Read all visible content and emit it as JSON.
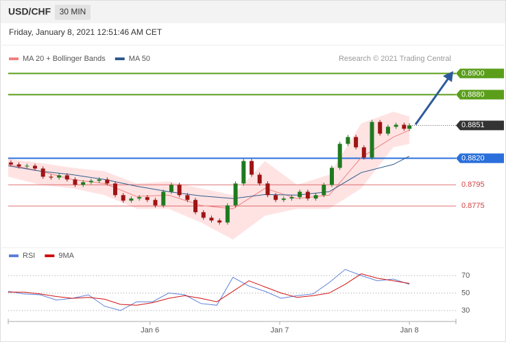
{
  "header": {
    "symbol": "USD/CHF",
    "timeframe": "30 MIN",
    "timestamp": "Friday, January 8, 2021 12:51:46 AM CET"
  },
  "chart_data": [
    {
      "type": "candlestick",
      "annotation": "Research © 2021 Trading Central",
      "xlim": [
        0,
        167.4
      ],
      "ylim": [
        0.8737,
        0.8908
      ],
      "up_color": "#1f7a1f",
      "down_color": "#9e1414",
      "candles": {
        "x": [
          1,
          4,
          7,
          10,
          13,
          16,
          19,
          22,
          25,
          28,
          31,
          34,
          37,
          40,
          43,
          46,
          49,
          52,
          55,
          58,
          61,
          64,
          67,
          70,
          73,
          76,
          79,
          82,
          85,
          88,
          91,
          94,
          97,
          100,
          103,
          106,
          109,
          112,
          115,
          118,
          121,
          124,
          127,
          130,
          133,
          136,
          139,
          142,
          145,
          148,
          150
        ],
        "open": [
          0.8816,
          0.88142,
          0.88123,
          0.88129,
          0.88103,
          0.88026,
          0.88018,
          0.88039,
          0.88,
          0.87949,
          0.87974,
          0.87987,
          0.88,
          0.87962,
          0.87852,
          0.878,
          0.8782,
          0.87833,
          0.87807,
          0.87755,
          0.87884,
          0.87949,
          0.87852,
          0.87807,
          0.87691,
          0.87639,
          0.87613,
          0.87594,
          0.87755,
          0.87962,
          0.88174,
          0.88045,
          0.87962,
          0.87852,
          0.87807,
          0.8782,
          0.87833,
          0.87884,
          0.8782,
          0.87852,
          0.87949,
          0.8811,
          0.88336,
          0.884,
          0.88303,
          0.88207,
          0.88542,
          0.88432,
          0.88497,
          0.88516,
          0.88478
        ],
        "high": [
          0.8818,
          0.88162,
          0.88149,
          0.88149,
          0.88123,
          0.88046,
          0.88059,
          0.88059,
          0.8802,
          0.87994,
          0.88007,
          0.8802,
          0.8802,
          0.87982,
          0.87872,
          0.8784,
          0.87853,
          0.87853,
          0.87827,
          0.87904,
          0.87969,
          0.87969,
          0.87872,
          0.87827,
          0.87711,
          0.87659,
          0.87633,
          0.87775,
          0.87982,
          0.88194,
          0.88194,
          0.88065,
          0.87982,
          0.87872,
          0.8784,
          0.87853,
          0.87904,
          0.87904,
          0.87872,
          0.87969,
          0.8813,
          0.88356,
          0.8842,
          0.8842,
          0.88323,
          0.88562,
          0.88562,
          0.88517,
          0.88536,
          0.88536,
          0.8853
        ],
        "low": [
          0.88122,
          0.88103,
          0.88103,
          0.88083,
          0.88006,
          0.87998,
          0.87998,
          0.8798,
          0.87929,
          0.87929,
          0.87954,
          0.87967,
          0.87942,
          0.87832,
          0.8778,
          0.8778,
          0.878,
          0.87787,
          0.87735,
          0.87735,
          0.87864,
          0.87832,
          0.87787,
          0.87671,
          0.87619,
          0.87593,
          0.87574,
          0.87574,
          0.87735,
          0.87942,
          0.88025,
          0.87942,
          0.87832,
          0.87787,
          0.87787,
          0.878,
          0.87813,
          0.878,
          0.878,
          0.87832,
          0.87929,
          0.8809,
          0.88316,
          0.88283,
          0.88187,
          0.88187,
          0.88412,
          0.88412,
          0.88477,
          0.88458,
          0.88458
        ],
        "close": [
          0.88142,
          0.88123,
          0.88129,
          0.88103,
          0.88026,
          0.88018,
          0.88039,
          0.88,
          0.87949,
          0.87974,
          0.87987,
          0.88,
          0.87962,
          0.87852,
          0.878,
          0.8782,
          0.87833,
          0.87807,
          0.87755,
          0.87884,
          0.87949,
          0.87852,
          0.87807,
          0.87691,
          0.87639,
          0.87613,
          0.87594,
          0.87755,
          0.87962,
          0.88174,
          0.88045,
          0.87962,
          0.87852,
          0.87807,
          0.8782,
          0.87833,
          0.87884,
          0.8782,
          0.87852,
          0.87949,
          0.8811,
          0.88336,
          0.884,
          0.88303,
          0.88207,
          0.88542,
          0.88432,
          0.88497,
          0.88516,
          0.88478,
          0.8851
        ]
      },
      "ma_x": [
        0,
        12,
        24,
        36,
        48,
        60,
        72,
        84,
        96,
        108,
        120,
        132,
        144,
        150
      ],
      "series": [
        {
          "name": "MA 20 + Bollinger Bands",
          "color": "#f08080",
          "band_color": "#ffdcdc",
          "values": [
            0.88142,
            0.88078,
            0.88,
            0.87962,
            0.87839,
            0.87852,
            0.87755,
            0.87723,
            0.87916,
            0.8782,
            0.87852,
            0.88207,
            0.884,
            0.88465
          ],
          "upper": [
            0.88194,
            0.88155,
            0.8811,
            0.88078,
            0.87962,
            0.87981,
            0.87916,
            0.87852,
            0.88174,
            0.87949,
            0.88045,
            0.88529,
            0.88639,
            0.88594
          ],
          "lower": [
            0.88026,
            0.87949,
            0.87916,
            0.87852,
            0.87723,
            0.87723,
            0.87594,
            0.87433,
            0.87658,
            0.87723,
            0.87723,
            0.87916,
            0.88303,
            0.88336
          ]
        },
        {
          "name": "MA 50",
          "color": "#2e5a8c",
          "values": [
            0.88129,
            0.88078,
            0.88045,
            0.88,
            0.87936,
            0.87884,
            0.87845,
            0.8782,
            0.87858,
            0.87852,
            0.87884,
            0.88065,
            0.88142,
            0.8822
          ]
        }
      ],
      "levels": [
        {
          "value": 0.89,
          "label": "0.8900",
          "color": "#5a9e1a",
          "box": true
        },
        {
          "value": 0.888,
          "label": "0.8880",
          "color": "#5a9e1a",
          "box": true
        },
        {
          "value": 0.8851,
          "label": "0.8851",
          "color": "#333333",
          "box": true
        },
        {
          "value": 0.882,
          "label": "0.8820",
          "color": "#2a6fdb",
          "box": true
        },
        {
          "value": 0.8795,
          "label": "0.8795",
          "color": "#d04040",
          "box": false
        },
        {
          "value": 0.8775,
          "label": "0.8775",
          "color": "#d04040",
          "box": false
        }
      ]
    },
    {
      "type": "line",
      "xlim": [
        0,
        167.4
      ],
      "ylim": [
        19,
        84
      ],
      "yticks": [
        30,
        50,
        70
      ],
      "grid": true,
      "xticks": [
        {
          "value": 53,
          "label": "Jan 6"
        },
        {
          "value": 101.5,
          "label": "Jan 7"
        },
        {
          "value": 150,
          "label": "Jan 8"
        }
      ],
      "x": [
        0,
        6,
        12,
        18,
        24,
        30,
        36,
        42,
        48,
        54,
        60,
        66,
        72,
        78,
        84,
        90,
        96,
        102,
        108,
        114,
        120,
        126,
        132,
        138,
        144,
        150
      ],
      "series": [
        {
          "name": "RSI",
          "color": "#5b7fd8",
          "values": [
            52,
            49,
            48,
            42,
            44,
            48,
            35,
            30,
            40,
            40,
            50,
            48,
            38,
            36,
            68,
            58,
            52,
            44,
            47,
            49,
            62,
            77,
            70,
            64,
            66,
            60
          ]
        },
        {
          "name": "9MA",
          "color": "#d01010",
          "values": [
            51,
            51,
            49,
            46,
            44,
            45,
            43,
            37,
            36,
            39,
            44,
            47,
            44,
            40,
            52,
            64,
            57,
            50,
            45,
            47,
            50,
            60,
            72,
            67,
            64,
            61
          ]
        }
      ]
    }
  ]
}
